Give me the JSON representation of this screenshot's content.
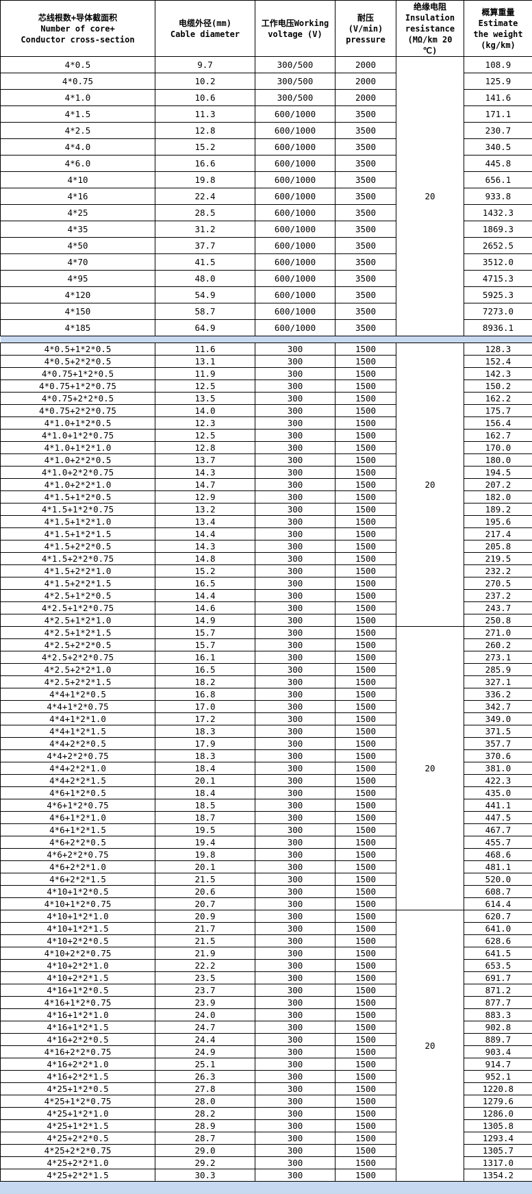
{
  "header": {
    "spec": [
      "芯线根数+导体截面积",
      "Number of core+",
      "Conductor cross-section"
    ],
    "diameter": [
      "电缆外径(mm)",
      "Cable diameter"
    ],
    "voltage": [
      "工作电压Working",
      "voltage (V)"
    ],
    "pressure": [
      "耐压",
      "(V/min)",
      "pressure"
    ],
    "insulation": [
      "绝缘电阻",
      "Insulation",
      "resistance",
      "(MΩ/km 20",
      "℃)"
    ],
    "weight": [
      "概算重量",
      "Estimate",
      "the weight",
      "(kg/km)"
    ]
  },
  "colors": {
    "separator": "#c6d9f0"
  },
  "sections": [
    {
      "style": "r1",
      "groups": [
        {
          "insulation": "20",
          "rows": [
            [
              "4*0.5",
              "9.7",
              "300/500",
              "2000",
              "108.9"
            ],
            [
              "4*0.75",
              "10.2",
              "300/500",
              "2000",
              "125.9"
            ],
            [
              "4*1.0",
              "10.6",
              "300/500",
              "2000",
              "141.6"
            ],
            [
              "4*1.5",
              "11.3",
              "600/1000",
              "3500",
              "171.1"
            ],
            [
              "4*2.5",
              "12.8",
              "600/1000",
              "3500",
              "230.7"
            ],
            [
              "4*4.0",
              "15.2",
              "600/1000",
              "3500",
              "340.5"
            ],
            [
              "4*6.0",
              "16.6",
              "600/1000",
              "3500",
              "445.8"
            ],
            [
              "4*10",
              "19.8",
              "600/1000",
              "3500",
              "656.1"
            ],
            [
              "4*16",
              "22.4",
              "600/1000",
              "3500",
              "933.8"
            ],
            [
              "4*25",
              "28.5",
              "600/1000",
              "3500",
              "1432.3"
            ],
            [
              "4*35",
              "31.2",
              "600/1000",
              "3500",
              "1869.3"
            ],
            [
              "4*50",
              "37.7",
              "600/1000",
              "3500",
              "2652.5"
            ],
            [
              "4*70",
              "41.5",
              "600/1000",
              "3500",
              "3512.0"
            ],
            [
              "4*95",
              "48.0",
              "600/1000",
              "3500",
              "4715.3"
            ],
            [
              "4*120",
              "54.9",
              "600/1000",
              "3500",
              "5925.3"
            ],
            [
              "4*150",
              "58.7",
              "600/1000",
              "3500",
              "7273.0"
            ],
            [
              "4*185",
              "64.9",
              "600/1000",
              "3500",
              "8936.1"
            ]
          ]
        }
      ]
    },
    {
      "style": "r2",
      "groups": [
        {
          "insulation": "20",
          "rows": [
            [
              "4*0.5+1*2*0.5",
              "11.6",
              "300",
              "1500",
              "128.3"
            ],
            [
              "4*0.5+2*2*0.5",
              "13.1",
              "300",
              "1500",
              "152.4"
            ],
            [
              "4*0.75+1*2*0.5",
              "11.9",
              "300",
              "1500",
              "142.3"
            ],
            [
              "4*0.75+1*2*0.75",
              "12.5",
              "300",
              "1500",
              "150.2"
            ],
            [
              "4*0.75+2*2*0.5",
              "13.5",
              "300",
              "1500",
              "162.2"
            ],
            [
              "4*0.75+2*2*0.75",
              "14.0",
              "300",
              "1500",
              "175.7"
            ],
            [
              "4*1.0+1*2*0.5",
              "12.3",
              "300",
              "1500",
              "156.4"
            ],
            [
              "4*1.0+1*2*0.75",
              "12.5",
              "300",
              "1500",
              "162.7"
            ],
            [
              "4*1.0+1*2*1.0",
              "12.8",
              "300",
              "1500",
              "170.0"
            ],
            [
              "4*1.0+2*2*0.5",
              "13.7",
              "300",
              "1500",
              "180.0"
            ],
            [
              "4*1.0+2*2*0.75",
              "14.3",
              "300",
              "1500",
              "194.5"
            ],
            [
              "4*1.0+2*2*1.0",
              "14.7",
              "300",
              "1500",
              "207.2"
            ],
            [
              "4*1.5+1*2*0.5",
              "12.9",
              "300",
              "1500",
              "182.0"
            ],
            [
              "4*1.5+1*2*0.75",
              "13.2",
              "300",
              "1500",
              "189.2"
            ],
            [
              "4*1.5+1*2*1.0",
              "13.4",
              "300",
              "1500",
              "195.6"
            ],
            [
              "4*1.5+1*2*1.5",
              "14.4",
              "300",
              "1500",
              "217.4"
            ],
            [
              "4*1.5+2*2*0.5",
              "14.3",
              "300",
              "1500",
              "205.8"
            ],
            [
              "4*1.5+2*2*0.75",
              "14.8",
              "300",
              "1500",
              "219.5"
            ],
            [
              "4*1.5+2*2*1.0",
              "15.2",
              "300",
              "1500",
              "232.2"
            ],
            [
              "4*1.5+2*2*1.5",
              "16.5",
              "300",
              "1500",
              "270.5"
            ],
            [
              "4*2.5+1*2*0.5",
              "14.4",
              "300",
              "1500",
              "237.2"
            ],
            [
              "4*2.5+1*2*0.75",
              "14.6",
              "300",
              "1500",
              "243.7"
            ],
            [
              "4*2.5+1*2*1.0",
              "14.9",
              "300",
              "1500",
              "250.8"
            ]
          ]
        },
        {
          "insulation": "20",
          "rows": [
            [
              "4*2.5+1*2*1.5",
              "15.7",
              "300",
              "1500",
              "271.0"
            ],
            [
              "4*2.5+2*2*0.5",
              "15.7",
              "300",
              "1500",
              "260.2"
            ],
            [
              "4*2.5+2*2*0.75",
              "16.1",
              "300",
              "1500",
              "273.1"
            ],
            [
              "4*2.5+2*2*1.0",
              "16.5",
              "300",
              "1500",
              "285.9"
            ],
            [
              "4*2.5+2*2*1.5",
              "18.2",
              "300",
              "1500",
              "327.1"
            ],
            [
              "4*4+1*2*0.5",
              "16.8",
              "300",
              "1500",
              "336.2"
            ],
            [
              "4*4+1*2*0.75",
              "17.0",
              "300",
              "1500",
              "342.7"
            ],
            [
              "4*4+1*2*1.0",
              "17.2",
              "300",
              "1500",
              "349.0"
            ],
            [
              "4*4+1*2*1.5",
              "18.3",
              "300",
              "1500",
              "371.5"
            ],
            [
              "4*4+2*2*0.5",
              "17.9",
              "300",
              "1500",
              "357.7"
            ],
            [
              "4*4+2*2*0.75",
              "18.3",
              "300",
              "1500",
              "370.6"
            ],
            [
              "4*4+2*2*1.0",
              "18.4",
              "300",
              "1500",
              "381.0"
            ],
            [
              "4*4+2*2*1.5",
              "20.1",
              "300",
              "1500",
              "422.3"
            ],
            [
              "4*6+1*2*0.5",
              "18.4",
              "300",
              "1500",
              "435.0"
            ],
            [
              "4*6+1*2*0.75",
              "18.5",
              "300",
              "1500",
              "441.1"
            ],
            [
              "4*6+1*2*1.0",
              "18.7",
              "300",
              "1500",
              "447.5"
            ],
            [
              "4*6+1*2*1.5",
              "19.5",
              "300",
              "1500",
              "467.7"
            ],
            [
              "4*6+2*2*0.5",
              "19.4",
              "300",
              "1500",
              "455.7"
            ],
            [
              "4*6+2*2*0.75",
              "19.8",
              "300",
              "1500",
              "468.6"
            ],
            [
              "4*6+2*2*1.0",
              "20.1",
              "300",
              "1500",
              "481.1"
            ],
            [
              "4*6+2*2*1.5",
              "21.5",
              "300",
              "1500",
              "520.0"
            ],
            [
              "4*10+1*2*0.5",
              "20.6",
              "300",
              "1500",
              "608.7"
            ],
            [
              "4*10+1*2*0.75",
              "20.7",
              "300",
              "1500",
              "614.4"
            ]
          ]
        },
        {
          "insulation": "20",
          "rows": [
            [
              "4*10+1*2*1.0",
              "20.9",
              "300",
              "1500",
              "620.7"
            ],
            [
              "4*10+1*2*1.5",
              "21.7",
              "300",
              "1500",
              "641.0"
            ],
            [
              "4*10+2*2*0.5",
              "21.5",
              "300",
              "1500",
              "628.6"
            ],
            [
              "4*10+2*2*0.75",
              "21.9",
              "300",
              "1500",
              "641.5"
            ],
            [
              "4*10+2*2*1.0",
              "22.2",
              "300",
              "1500",
              "653.5"
            ],
            [
              "4*10+2*2*1.5",
              "23.5",
              "300",
              "1500",
              "691.7"
            ],
            [
              "4*16+1*2*0.5",
              "23.7",
              "300",
              "1500",
              "871.2"
            ],
            [
              "4*16+1*2*0.75",
              "23.9",
              "300",
              "1500",
              "877.7"
            ],
            [
              "4*16+1*2*1.0",
              "24.0",
              "300",
              "1500",
              "883.3"
            ],
            [
              "4*16+1*2*1.5",
              "24.7",
              "300",
              "1500",
              "902.8"
            ],
            [
              "4*16+2*2*0.5",
              "24.4",
              "300",
              "1500",
              "889.7"
            ],
            [
              "4*16+2*2*0.75",
              "24.9",
              "300",
              "1500",
              "903.4"
            ],
            [
              "4*16+2*2*1.0",
              "25.1",
              "300",
              "1500",
              "914.7"
            ],
            [
              "4*16+2*2*1.5",
              "26.3",
              "300",
              "1500",
              "952.1"
            ],
            [
              "4*25+1*2*0.5",
              "27.8",
              "300",
              "1500",
              "1220.8"
            ],
            [
              "4*25+1*2*0.75",
              "28.0",
              "300",
              "1500",
              "1279.6"
            ],
            [
              "4*25+1*2*1.0",
              "28.2",
              "300",
              "1500",
              "1286.0"
            ],
            [
              "4*25+1*2*1.5",
              "28.9",
              "300",
              "1500",
              "1305.8"
            ],
            [
              "4*25+2*2*0.5",
              "28.7",
              "300",
              "1500",
              "1293.4"
            ],
            [
              "4*25+2*2*0.75",
              "29.0",
              "300",
              "1500",
              "1305.7"
            ],
            [
              "4*25+2*2*1.0",
              "29.2",
              "300",
              "1500",
              "1317.0"
            ],
            [
              "4*25+2*2*1.5",
              "30.3",
              "300",
              "1500",
              "1354.2"
            ]
          ]
        }
      ]
    }
  ]
}
